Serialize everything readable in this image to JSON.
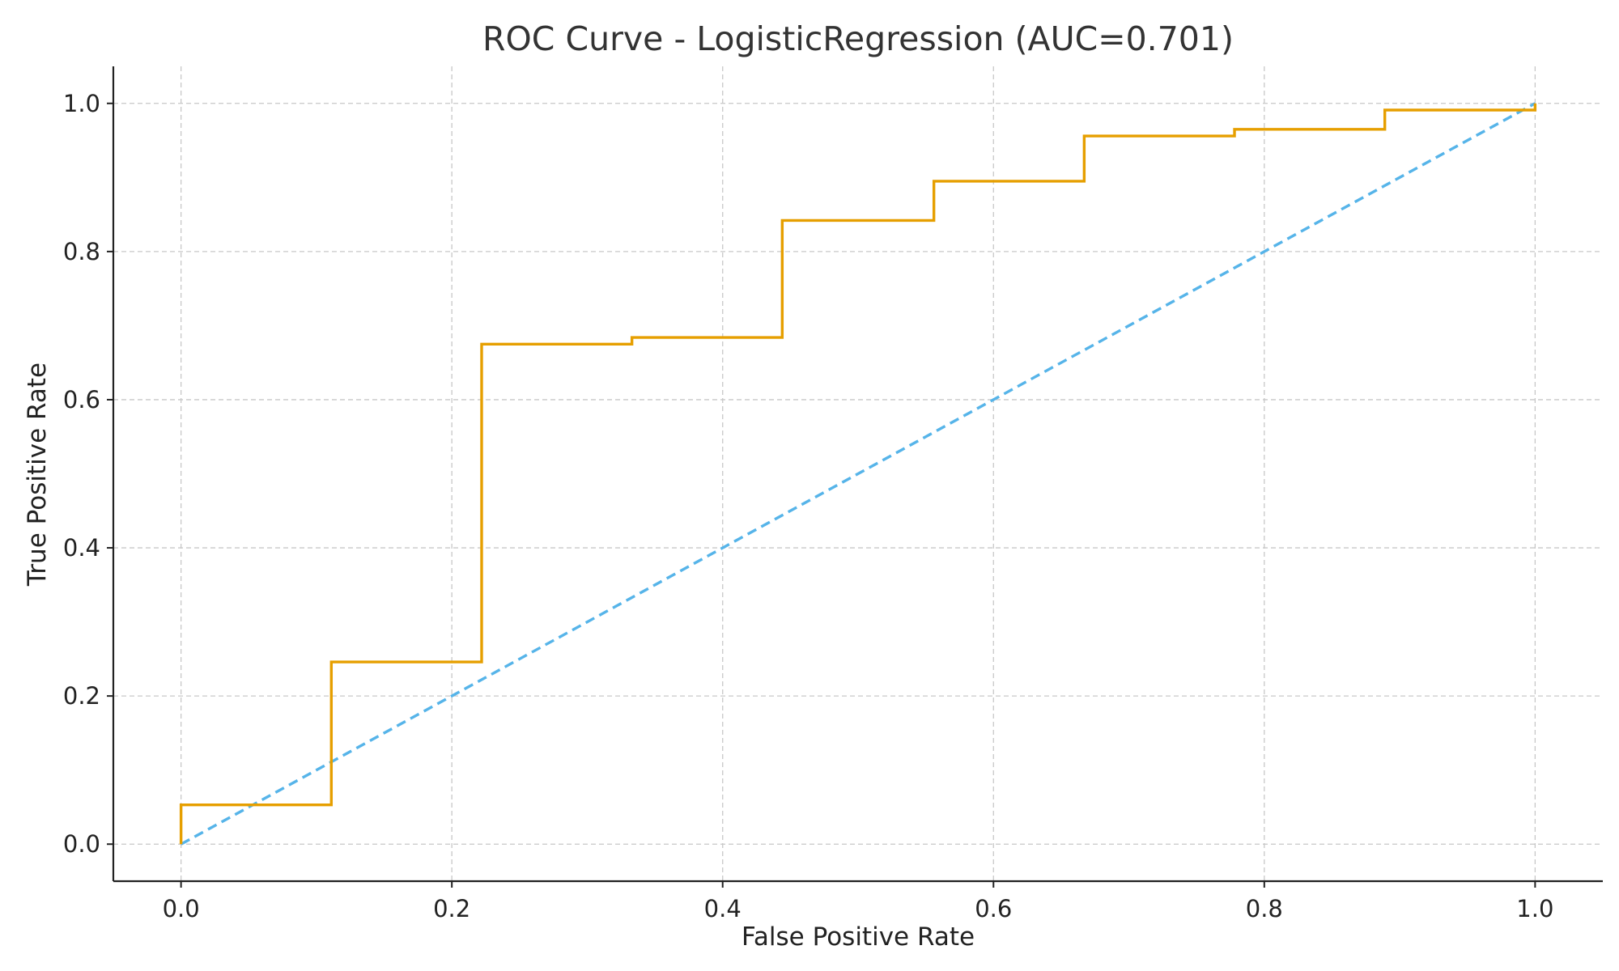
{
  "chart_data": {
    "type": "line",
    "title": "ROC Curve - LogisticRegression (AUC=0.701)",
    "xlabel": "False Positive Rate",
    "ylabel": "True Positive Rate",
    "xlim": [
      -0.05,
      1.05
    ],
    "ylim": [
      -0.05,
      1.05
    ],
    "grid": true,
    "x_ticks": [
      0.0,
      0.2,
      0.4,
      0.6,
      0.8,
      1.0
    ],
    "y_ticks": [
      0.0,
      0.2,
      0.4,
      0.6,
      0.8,
      1.0
    ],
    "x_tick_labels": [
      "0.0",
      "0.2",
      "0.4",
      "0.6",
      "0.8",
      "1.0"
    ],
    "y_tick_labels": [
      "0.0",
      "0.2",
      "0.4",
      "0.6",
      "0.8",
      "1.0"
    ],
    "series": [
      {
        "style": "solid",
        "color": "#E69F00",
        "x": [
          0.0,
          0.0,
          0.111,
          0.111,
          0.222,
          0.222,
          0.333,
          0.333,
          0.444,
          0.444,
          0.556,
          0.556,
          0.667,
          0.667,
          0.778,
          0.778,
          0.889,
          0.889,
          1.0,
          1.0
        ],
        "y": [
          0.0,
          0.053,
          0.053,
          0.246,
          0.246,
          0.675,
          0.675,
          0.684,
          0.684,
          0.842,
          0.842,
          0.895,
          0.895,
          0.956,
          0.956,
          0.965,
          0.965,
          0.991,
          0.991,
          1.0
        ]
      },
      {
        "style": "dashed",
        "color": "#56B4E9",
        "x": [
          0.0,
          1.0
        ],
        "y": [
          0.0,
          1.0
        ]
      }
    ]
  }
}
